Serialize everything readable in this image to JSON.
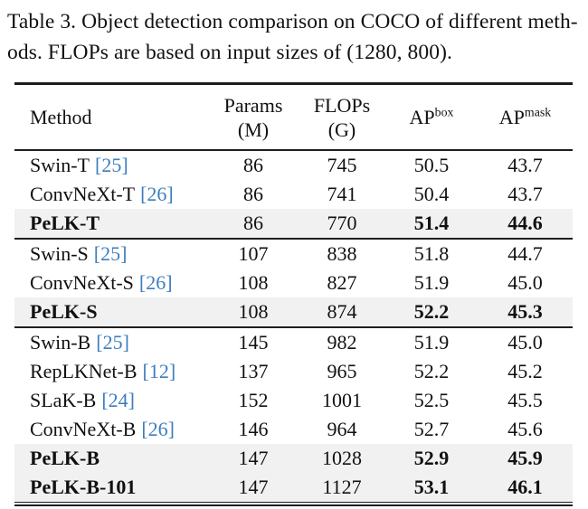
{
  "caption": {
    "line1": "Table 3. Object detection comparison on COCO of different meth-",
    "line2": "ods. FLOPs are based on input sizes of (1280, 800)."
  },
  "colors": {
    "citation_blue": "#3d7ebf",
    "highlight_row_gray": "#f1f1f1",
    "rule_black": "#1b1b1b"
  },
  "header": {
    "method": "Method",
    "params": {
      "line1": "Params",
      "line2": "(M)"
    },
    "flops": {
      "line1": "FLOPs",
      "line2": "(G)"
    },
    "ap_box": {
      "main": "AP",
      "sup": "box"
    },
    "ap_mask": {
      "main": "AP",
      "sup": "mask"
    }
  },
  "rows": [
    {
      "method": "Swin-T",
      "cite": "[25]",
      "params": "86",
      "flops": "745",
      "ap_box": "50.5",
      "ap_mask": "43.7"
    },
    {
      "method": "ConvNeXt-T",
      "cite": "[26]",
      "params": "86",
      "flops": "741",
      "ap_box": "50.4",
      "ap_mask": "43.7"
    },
    {
      "method": "PeLK-T",
      "cite": "",
      "params": "86",
      "flops": "770",
      "ap_box": "51.4",
      "ap_mask": "44.6"
    },
    {
      "method": "Swin-S",
      "cite": "[25]",
      "params": "107",
      "flops": "838",
      "ap_box": "51.8",
      "ap_mask": "44.7"
    },
    {
      "method": "ConvNeXt-S",
      "cite": "[26]",
      "params": "108",
      "flops": "827",
      "ap_box": "51.9",
      "ap_mask": "45.0"
    },
    {
      "method": "PeLK-S",
      "cite": "",
      "params": "108",
      "flops": "874",
      "ap_box": "52.2",
      "ap_mask": "45.3"
    },
    {
      "method": "Swin-B",
      "cite": "[25]",
      "params": "145",
      "flops": "982",
      "ap_box": "51.9",
      "ap_mask": "45.0"
    },
    {
      "method": "RepLKNet-B",
      "cite": "[12]",
      "params": "137",
      "flops": "965",
      "ap_box": "52.2",
      "ap_mask": "45.2"
    },
    {
      "method": "SLaK-B",
      "cite": "[24]",
      "params": "152",
      "flops": "1001",
      "ap_box": "52.5",
      "ap_mask": "45.5"
    },
    {
      "method": "ConvNeXt-B",
      "cite": "[26]",
      "params": "146",
      "flops": "964",
      "ap_box": "52.7",
      "ap_mask": "45.6"
    },
    {
      "method": "PeLK-B",
      "cite": "",
      "params": "147",
      "flops": "1028",
      "ap_box": "52.9",
      "ap_mask": "45.9"
    },
    {
      "method": "PeLK-B-101",
      "cite": "",
      "params": "147",
      "flops": "1127",
      "ap_box": "53.1",
      "ap_mask": "46.1"
    }
  ]
}
